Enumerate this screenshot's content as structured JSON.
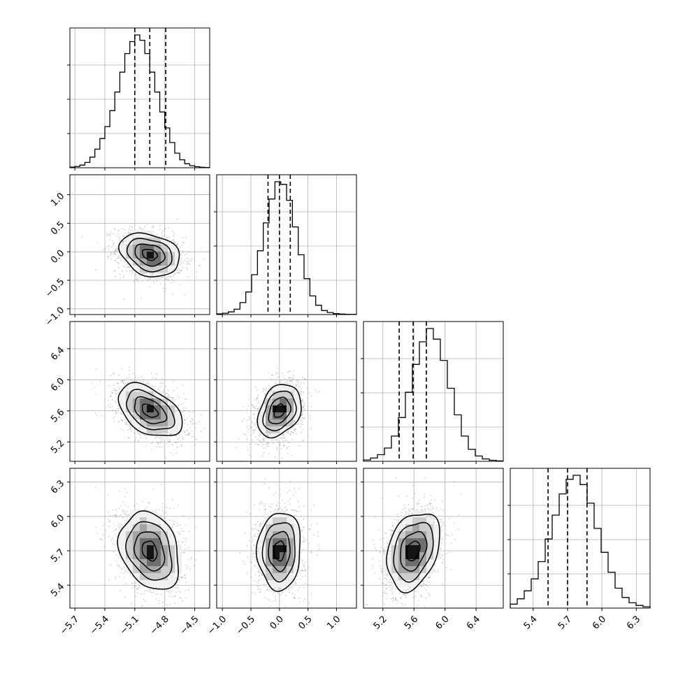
{
  "chart_data": {
    "type": "corner",
    "colors": {
      "ink": "#000000",
      "grid": "#b0b0b0",
      "scatter": "#9e9e9e"
    },
    "params": [
      {
        "range": [
          -5.75,
          -4.35
        ],
        "ticks": [
          -5.7,
          -5.4,
          -5.1,
          -4.8,
          -4.5
        ],
        "tick_labels": [
          "−5.7",
          "−5.4",
          "−5.1",
          "−4.8",
          "−4.5"
        ],
        "quantiles": [
          -5.1,
          -4.95,
          -4.79
        ],
        "hist": [
          0.005,
          0.01,
          0.02,
          0.04,
          0.08,
          0.14,
          0.22,
          0.31,
          0.43,
          0.57,
          0.72,
          0.86,
          0.95,
          1.0,
          0.96,
          0.86,
          0.72,
          0.57,
          0.42,
          0.3,
          0.19,
          0.11,
          0.06,
          0.03,
          0.015,
          0.008,
          0.004,
          0.002
        ]
      },
      {
        "range": [
          -1.1,
          1.35
        ],
        "ticks": [
          -1.0,
          -0.5,
          0.0,
          0.5,
          1.0
        ],
        "tick_labels": [
          "−1.0",
          "−0.5",
          "0.0",
          "0.5",
          "1.0"
        ],
        "quantiles": [
          -0.2,
          0.0,
          0.19
        ],
        "hist": [
          0.005,
          0.01,
          0.02,
          0.04,
          0.09,
          0.17,
          0.3,
          0.48,
          0.69,
          0.87,
          1.0,
          0.98,
          0.86,
          0.66,
          0.45,
          0.27,
          0.14,
          0.07,
          0.03,
          0.015,
          0.007,
          0.004,
          0.002,
          0.001
        ]
      },
      {
        "range": [
          4.95,
          6.75
        ],
        "ticks": [
          5.2,
          5.6,
          6.0,
          6.4
        ],
        "tick_labels": [
          "5.2",
          "5.6",
          "6.0",
          "6.4"
        ],
        "quantiles": [
          5.41,
          5.59,
          5.76
        ],
        "hist": [
          0.01,
          0.025,
          0.05,
          0.1,
          0.19,
          0.33,
          0.52,
          0.73,
          0.9,
          1.0,
          0.92,
          0.76,
          0.55,
          0.35,
          0.19,
          0.09,
          0.04,
          0.018,
          0.008,
          0.003
        ]
      },
      {
        "range": [
          5.2,
          6.42
        ],
        "ticks": [
          5.4,
          5.7,
          6.0,
          6.3
        ],
        "tick_labels": [
          "5.4",
          "5.7",
          "6.0",
          "6.3"
        ],
        "quantiles": [
          5.53,
          5.7,
          5.87
        ],
        "hist": [
          0.03,
          0.07,
          0.13,
          0.22,
          0.35,
          0.52,
          0.7,
          0.86,
          0.97,
          1.0,
          0.93,
          0.79,
          0.6,
          0.42,
          0.27,
          0.15,
          0.08,
          0.04,
          0.02,
          0.01
        ]
      }
    ],
    "pairs": [
      {
        "row": 1,
        "col": 0,
        "center": [
          -4.95,
          -0.05
        ],
        "sigma": [
          0.15,
          0.19
        ],
        "rho": -0.25
      },
      {
        "row": 2,
        "col": 0,
        "center": [
          -4.95,
          5.6
        ],
        "sigma": [
          0.16,
          0.17
        ],
        "rho": -0.45
      },
      {
        "row": 2,
        "col": 1,
        "center": [
          0.0,
          5.6
        ],
        "sigma": [
          0.19,
          0.17
        ],
        "rho": 0.3
      },
      {
        "row": 3,
        "col": 0,
        "center": [
          -4.95,
          5.7
        ],
        "sigma": [
          0.15,
          0.17
        ],
        "rho": -0.25
      },
      {
        "row": 3,
        "col": 1,
        "center": [
          0.0,
          5.7
        ],
        "sigma": [
          0.19,
          0.17
        ],
        "rho": 0.05
      },
      {
        "row": 3,
        "col": 2,
        "center": [
          5.59,
          5.7
        ],
        "sigma": [
          0.17,
          0.17
        ],
        "rho": 0.3
      }
    ],
    "contour_levels": [
      0.5,
      1.0,
      1.5,
      2.0
    ],
    "grid": true,
    "legend": "none"
  }
}
